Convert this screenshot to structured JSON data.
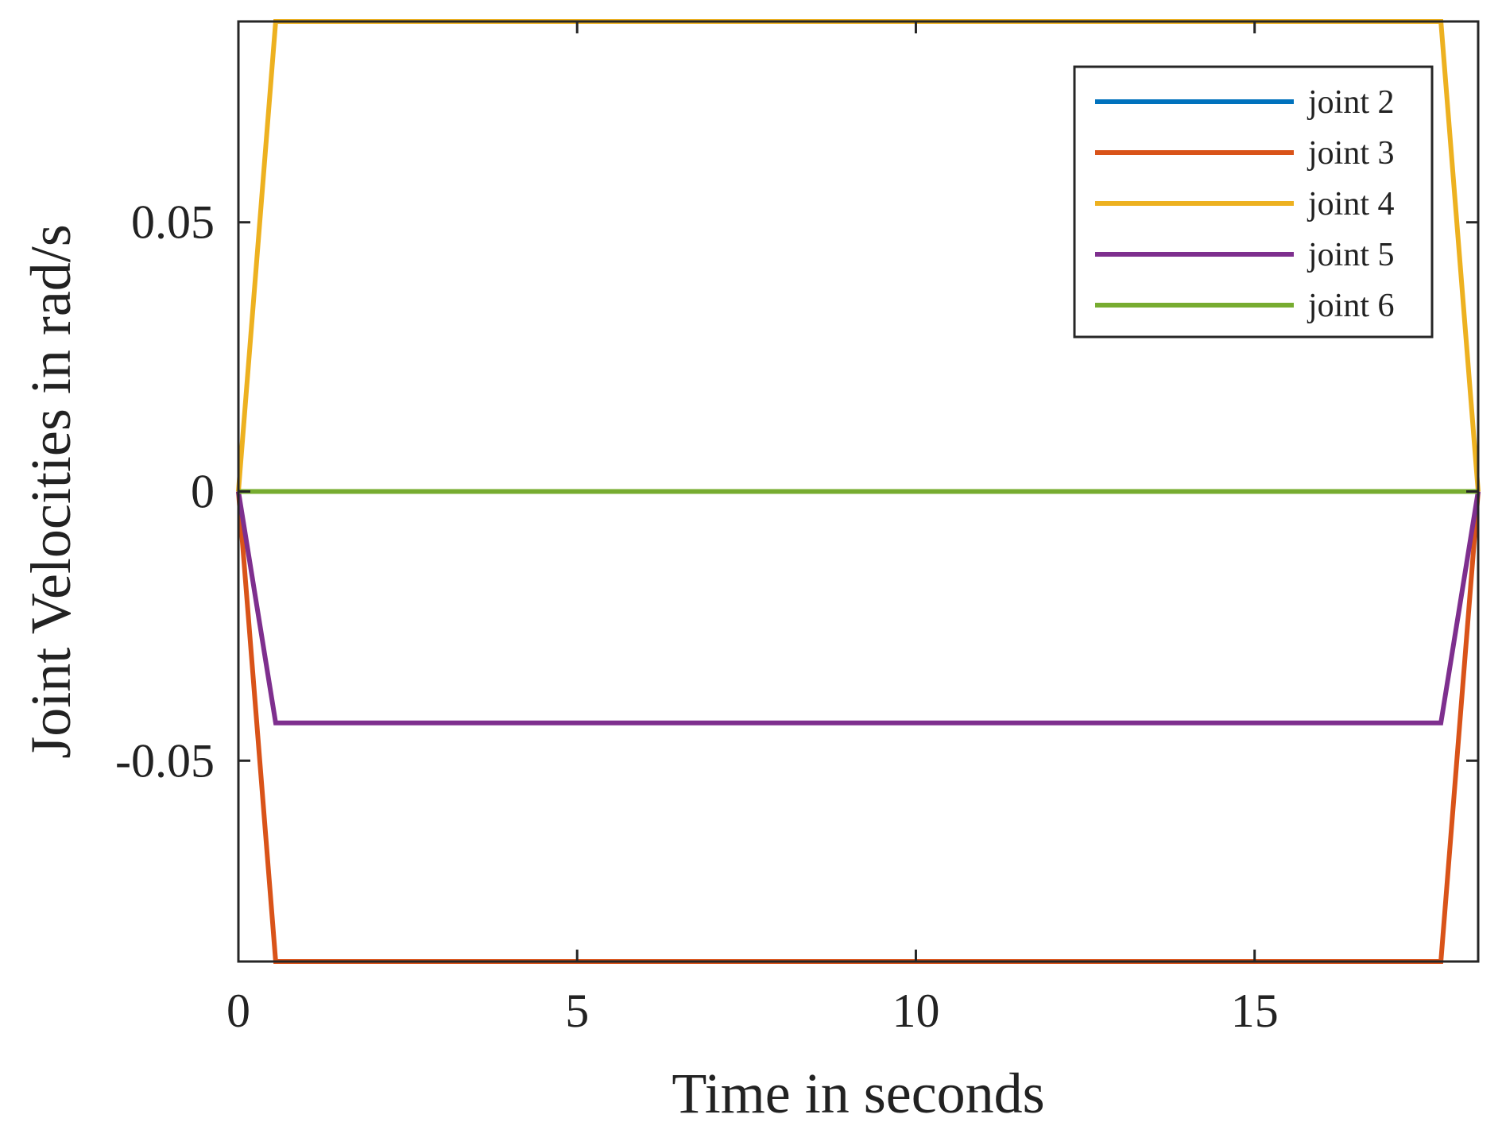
{
  "chart_data": {
    "type": "line",
    "title": "",
    "xlabel": "Time in seconds",
    "ylabel": "Joint Velocities in rad/s",
    "xlim": [
      0,
      18.3
    ],
    "ylim": [
      -0.0873,
      0.0873
    ],
    "x_ticks": [
      0,
      5,
      10,
      15
    ],
    "x_tick_labels": [
      "0",
      "5",
      "10",
      "15"
    ],
    "y_ticks": [
      -0.05,
      0,
      0.05
    ],
    "y_tick_labels": [
      "-0.05",
      "0",
      "0.05"
    ],
    "grid": false,
    "legend_position": "top-right",
    "series": [
      {
        "name": "joint 2",
        "color": "#0072BD",
        "x": [
          0,
          18.3
        ],
        "y": [
          0,
          0
        ]
      },
      {
        "name": "joint 3",
        "color": "#D95319",
        "x": [
          0,
          0.55,
          17.75,
          18.3
        ],
        "y": [
          0,
          -0.0873,
          -0.0873,
          0
        ]
      },
      {
        "name": "joint 4",
        "color": "#EDB120",
        "x": [
          0,
          0.55,
          17.75,
          18.3
        ],
        "y": [
          0,
          0.0873,
          0.0873,
          0
        ]
      },
      {
        "name": "joint 5",
        "color": "#7E2F8E",
        "x": [
          0,
          0.55,
          17.75,
          18.3
        ],
        "y": [
          0,
          -0.043,
          -0.043,
          0
        ]
      },
      {
        "name": "joint 6",
        "color": "#77AC30",
        "x": [
          0,
          18.3
        ],
        "y": [
          0,
          0
        ]
      }
    ]
  }
}
